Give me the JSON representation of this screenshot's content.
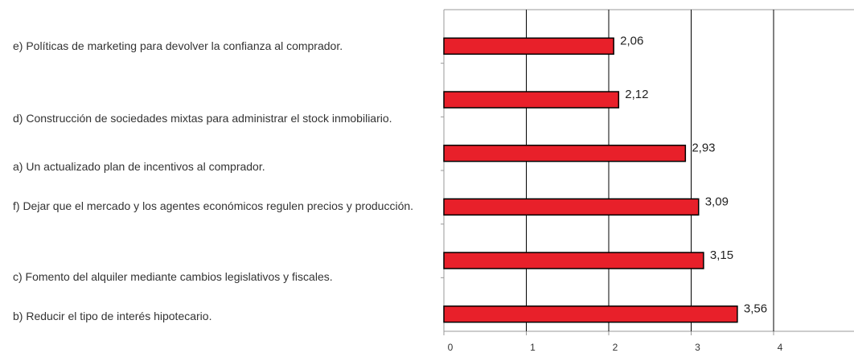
{
  "chart_data": {
    "type": "hbar",
    "categories": [
      "e) Políticas de marketing para devolver la confianza al comprador.",
      "d) Construcción de sociedades mixtas para administrar el stock inmobiliario.",
      "a) Un actualizado plan de incentivos al comprador.",
      "f) Dejar que el mercado y los agentes económicos regulen precios y producción.",
      "c) Fomento del alquiler mediante cambios legislativos y fiscales.",
      "b) Reducir el tipo de interés hipotecario."
    ],
    "values": [
      2.06,
      2.12,
      2.93,
      3.09,
      3.15,
      3.56
    ],
    "value_labels": [
      "2,06",
      "2,12",
      "2,93",
      "3,09",
      "3,15",
      "3,56"
    ],
    "color": "#e8202a",
    "xlim": [
      0,
      5
    ],
    "xticks": [
      0,
      1,
      2,
      3,
      4,
      5
    ],
    "grid": true
  }
}
